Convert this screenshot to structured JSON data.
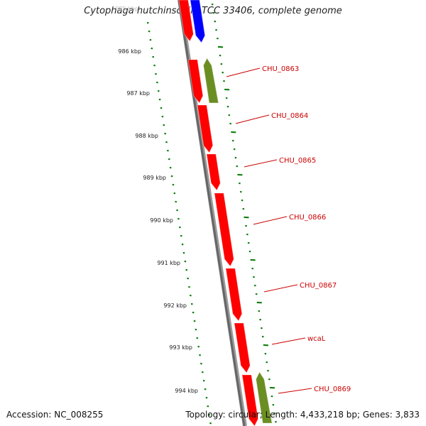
{
  "title": "Cytophaga hutchinsonii ATCC 33406, complete genome",
  "footer": {
    "accession": "Accession: NC_008255",
    "summary": "Topology: circular; Length: 4,433,218 bp; Genes: 3,833"
  },
  "colors": {
    "backbone": "#777777",
    "forward_gene": "#ff0000",
    "reverse_gene": "#0000ff",
    "rna_gene": "#6b8e23",
    "ruler": "#007700",
    "label": "#cc0000"
  },
  "ruler": {
    "unit": "kbp",
    "faded_label": "985 kbp",
    "labels": [
      "986 kbp",
      "987 kbp",
      "988 kbp",
      "989 kbp",
      "990 kbp",
      "991 kbp",
      "992 kbp",
      "993 kbp",
      "994 kbp"
    ]
  },
  "gene_labels": [
    "CHU_0863",
    "CHU_0864",
    "CHU_0865",
    "CHU_0866",
    "CHU_0867",
    "wcaL",
    "CHU_0869"
  ]
}
